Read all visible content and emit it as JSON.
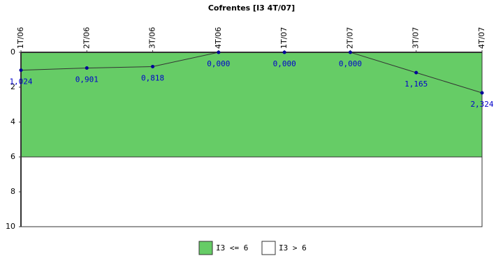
{
  "chart_data": {
    "type": "line",
    "title": "Cofrentes [I3 4T/07]",
    "categories": [
      "1T/06",
      "2T/06",
      "3T/06",
      "4T/06",
      "1T/07",
      "2T/07",
      "3T/07",
      "4T/07"
    ],
    "values": [
      1.024,
      0.901,
      0.818,
      0,
      0,
      0,
      1.165,
      2.324
    ],
    "value_labels": [
      "1,024",
      "0,901",
      "0,818",
      "0,000",
      "0,000",
      "0,000",
      "1,165",
      "2,324"
    ],
    "color": "#333333",
    "marker_color": "#000099",
    "label_color": "#0000cc",
    "ylim": [
      0,
      10
    ],
    "yticks": [
      0,
      2,
      4,
      6,
      8,
      10
    ],
    "y_inverted": true,
    "bands": [
      {
        "name": "I3 <= 6",
        "color": "#66cc66",
        "range": [
          0,
          6
        ]
      },
      {
        "name": "I3 > 6",
        "color": "#ffffff",
        "range": [
          6,
          10
        ]
      }
    ]
  }
}
